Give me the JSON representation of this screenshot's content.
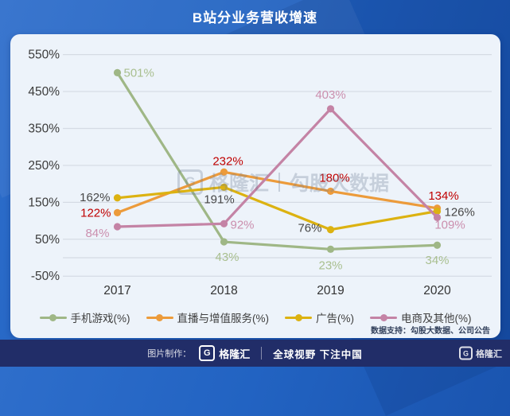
{
  "title": "B站分业务营收增速",
  "watermark": {
    "brand_icon": "G",
    "brand": "格隆汇",
    "name": "勾股大数据"
  },
  "datasource": "数据支持：勾股大数据、公司公告",
  "footer": {
    "made_by_label": "图片制作：",
    "brand_icon": "G",
    "brand": "格隆汇",
    "slogan": "全球视野 下注中国",
    "brand_right_icon": "G",
    "brand_right": "格隆汇"
  },
  "chart_data": {
    "type": "line",
    "title": "B站分业务营收增速",
    "categories": [
      "2017",
      "2018",
      "2019",
      "2020"
    ],
    "series": [
      {
        "name": "手机游戏(%)",
        "color": "#9fb786",
        "label_color": "#a9bf8f",
        "values": [
          501,
          43,
          23,
          34
        ],
        "labels": [
          "501%",
          "43%",
          "23%",
          "34%"
        ],
        "label_offsets": [
          [
            8,
            5,
            "start"
          ],
          [
            4,
            24,
            "middle"
          ],
          [
            0,
            25,
            "middle"
          ],
          [
            0,
            24,
            "middle"
          ]
        ]
      },
      {
        "name": "直播与增值服务(%)",
        "color": "#ec9b3b",
        "label_color": "#c00000",
        "values": [
          122,
          232,
          180,
          134
        ],
        "labels": [
          "122%",
          "232%",
          "180%",
          "134%"
        ],
        "label_offsets": [
          [
            -8,
            5,
            "end"
          ],
          [
            5,
            -9,
            "middle"
          ],
          [
            5,
            -12,
            "middle"
          ],
          [
            8,
            -11,
            "middle"
          ]
        ]
      },
      {
        "name": "广告(%)",
        "color": "#dcb211",
        "label_color": "#474747",
        "values": [
          162,
          191,
          76,
          126
        ],
        "labels": [
          "162%",
          "191%",
          "76%",
          "126%"
        ],
        "label_offsets": [
          [
            -9,
            4,
            "end"
          ],
          [
            -6,
            20,
            "middle"
          ],
          [
            -11,
            3,
            "end"
          ],
          [
            9,
            6,
            "start"
          ]
        ]
      },
      {
        "name": "电商及其他(%)",
        "color": "#c483a5",
        "label_color": "#cb8fae",
        "values": [
          84,
          92,
          403,
          109
        ],
        "labels": [
          "84%",
          "92%",
          "403%",
          "109%"
        ],
        "label_offsets": [
          [
            -10,
            13,
            "end"
          ],
          [
            8,
            6,
            "start"
          ],
          [
            0,
            -13,
            "middle"
          ],
          [
            16,
            14,
            "middle"
          ]
        ]
      }
    ],
    "y_ticks": [
      550,
      450,
      350,
      250,
      150,
      50,
      -50
    ],
    "y_tick_labels": [
      "550%",
      "450%",
      "350%",
      "250%",
      "150%",
      "50%",
      "-50%"
    ],
    "ylim": [
      -50,
      550
    ],
    "zero_line": 0,
    "grid": true,
    "legend_position": "bottom",
    "colors": {
      "plot_bg": "#edf3fa",
      "gridline": "#d5dbe4",
      "tick_text": "#3b3b3b",
      "axis_text": "#333333"
    }
  }
}
